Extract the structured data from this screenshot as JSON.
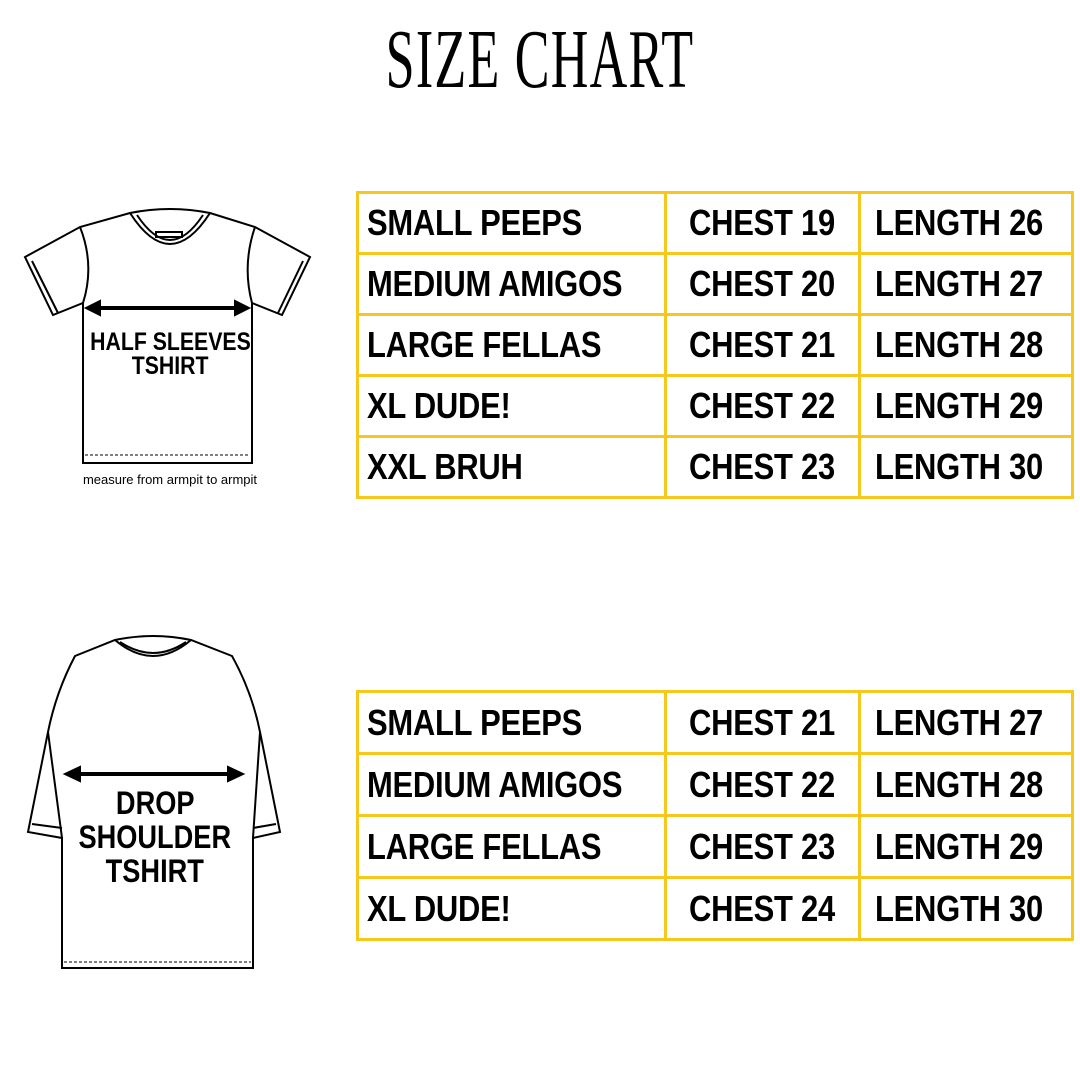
{
  "title": "SIZE CHART",
  "border_color": "#F6C81E",
  "half_sleeves": {
    "label_line1": "HALF SLEEVES",
    "label_line2": "TSHIRT",
    "note": "measure from armpit to armpit",
    "rows": [
      {
        "size": "SMALL PEEPS",
        "chest": "CHEST 19",
        "length": "LENGTH 26"
      },
      {
        "size": "MEDIUM AMIGOS",
        "chest": "CHEST 20",
        "length": "LENGTH 27"
      },
      {
        "size": "LARGE FELLAS",
        "chest": "CHEST 21",
        "length": "LENGTH 28"
      },
      {
        "size": "XL DUDE!",
        "chest": "CHEST 22",
        "length": "LENGTH 29"
      },
      {
        "size": "XXL BRUH",
        "chest": "CHEST 23",
        "length": "LENGTH 30"
      }
    ]
  },
  "drop_shoulder": {
    "label_line1": "DROP",
    "label_line2": "SHOULDER",
    "label_line3": "TSHIRT",
    "rows": [
      {
        "size": "SMALL PEEPS",
        "chest": "CHEST 21",
        "length": "LENGTH 27"
      },
      {
        "size": "MEDIUM AMIGOS",
        "chest": "CHEST 22",
        "length": "LENGTH 28"
      },
      {
        "size": "LARGE FELLAS",
        "chest": "CHEST 23",
        "length": "LENGTH 29"
      },
      {
        "size": "XL DUDE!",
        "chest": "CHEST 24",
        "length": "LENGTH 30"
      }
    ]
  }
}
